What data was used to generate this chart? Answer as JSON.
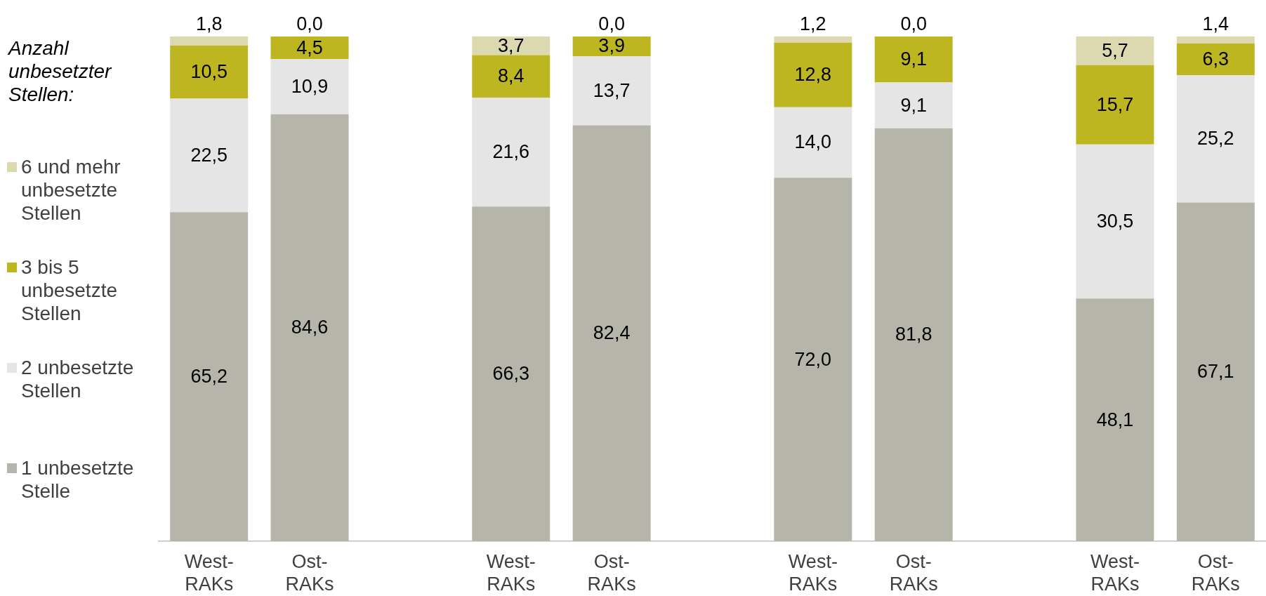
{
  "chart_data": {
    "type": "bar",
    "stacked": true,
    "legend": "left",
    "legend_title": "Anzahl unbesetzter Stellen:",
    "tick_labels": "x",
    "ylim": [
      0,
      100
    ],
    "categories": [
      "West-RAKs",
      "Ost-RAKs",
      null,
      "West-RAKs",
      "Ost-RAKs",
      null,
      "West-RAKs",
      "Ost-RAKs",
      null,
      "West-RAKs",
      "Ost-RAKs"
    ],
    "series": [
      {
        "name": "1 unbesetzte Stelle",
        "color": "#b5b5a9",
        "values": [
          65.2,
          84.6,
          null,
          66.3,
          82.4,
          null,
          72.0,
          81.8,
          null,
          48.1,
          67.1
        ],
        "value_labels": [
          "65,2",
          "84,6",
          null,
          "66,3",
          "82,4",
          null,
          "72,0",
          "81,8",
          null,
          "48,1",
          "67,1"
        ]
      },
      {
        "name": "2 unbesetzte Stellen",
        "color": "#e5e5e5",
        "values": [
          22.5,
          10.9,
          null,
          21.6,
          13.7,
          null,
          14.0,
          9.1,
          null,
          30.5,
          25.2
        ],
        "value_labels": [
          "22,5",
          "10,9",
          null,
          "21,6",
          "13,7",
          null,
          "14,0",
          "9,1",
          null,
          "30,5",
          "25,2"
        ]
      },
      {
        "name": "3 bis 5 unbesetzte Stellen",
        "color": "#bdb621",
        "values": [
          10.5,
          4.5,
          null,
          8.4,
          3.9,
          null,
          12.8,
          9.1,
          null,
          15.7,
          6.3
        ],
        "value_labels": [
          "10,5",
          "4,5",
          null,
          "8,4",
          "3,9",
          null,
          "12,8",
          "9,1",
          null,
          "15,7",
          "6,3"
        ]
      },
      {
        "name": "6 und mehr unbesetzte Stellen",
        "color": "#dcd9b1",
        "values": [
          1.8,
          0.0,
          null,
          3.7,
          0.0,
          null,
          1.2,
          0.0,
          null,
          5.7,
          1.4
        ],
        "value_labels": [
          "1,8",
          "0,0",
          null,
          "3,7",
          "0,0",
          null,
          "1,2",
          "0,0",
          null,
          "5,7",
          "1,4"
        ]
      }
    ]
  }
}
